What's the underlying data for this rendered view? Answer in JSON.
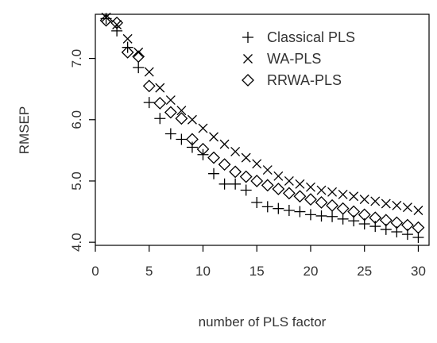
{
  "chart_data": {
    "type": "scatter",
    "title": "",
    "xlabel": "number of PLS factor",
    "ylabel": "RMSEP",
    "xlim": [
      0,
      31
    ],
    "ylim": [
      3.95,
      7.72
    ],
    "xticks": [
      0,
      5,
      10,
      15,
      20,
      25,
      30
    ],
    "yticks": [
      4.0,
      5.0,
      6.0,
      7.0
    ],
    "xtick_labels": [
      "0",
      "5",
      "10",
      "15",
      "20",
      "25",
      "30"
    ],
    "ytick_labels": [
      "4.0",
      "5.0",
      "6.0",
      "7.0"
    ],
    "grid": false,
    "legend_position": "top-right",
    "x": [
      1,
      2,
      3,
      4,
      5,
      6,
      7,
      8,
      9,
      10,
      11,
      12,
      13,
      14,
      15,
      16,
      17,
      18,
      19,
      20,
      21,
      22,
      23,
      24,
      25,
      26,
      27,
      28,
      29,
      30
    ],
    "series": [
      {
        "name": "Classical PLS",
        "marker": "plus",
        "values": [
          7.65,
          7.45,
          7.18,
          6.85,
          6.28,
          6.02,
          5.77,
          5.68,
          5.55,
          5.43,
          5.12,
          4.95,
          4.95,
          4.85,
          4.65,
          4.58,
          4.55,
          4.52,
          4.5,
          4.45,
          4.43,
          4.42,
          4.38,
          4.35,
          4.3,
          4.26,
          4.21,
          4.17,
          4.13,
          4.08
        ]
      },
      {
        "name": "WA-PLS",
        "marker": "x",
        "values": [
          7.67,
          7.55,
          7.32,
          7.1,
          6.78,
          6.52,
          6.32,
          6.15,
          6.0,
          5.86,
          5.72,
          5.6,
          5.48,
          5.38,
          5.28,
          5.18,
          5.08,
          5.0,
          4.95,
          4.9,
          4.85,
          4.82,
          4.78,
          4.75,
          4.7,
          4.67,
          4.63,
          4.6,
          4.57,
          4.52
        ]
      },
      {
        "name": "RRWA-PLS",
        "marker": "diamond",
        "values": [
          7.62,
          7.58,
          7.1,
          7.03,
          6.55,
          6.27,
          6.12,
          6.02,
          5.68,
          5.52,
          5.38,
          5.27,
          5.15,
          5.07,
          5.0,
          4.93,
          4.87,
          4.8,
          4.75,
          4.7,
          4.65,
          4.6,
          4.55,
          4.5,
          4.45,
          4.4,
          4.36,
          4.32,
          4.28,
          4.24
        ]
      }
    ]
  }
}
